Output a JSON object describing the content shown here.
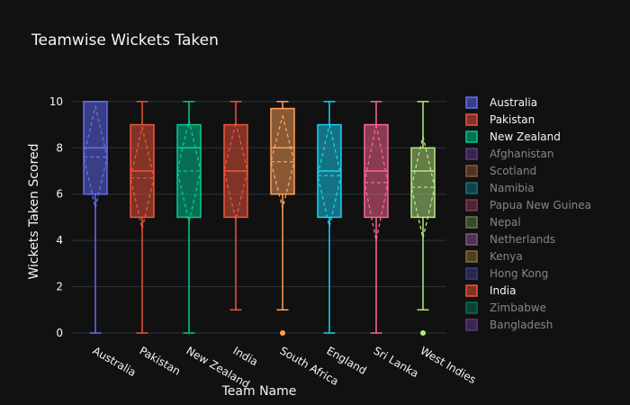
{
  "chart_data": {
    "type": "box",
    "title": "Teamwise Wickets Taken",
    "xlabel": "Team Name",
    "ylabel": "Wickets Taken Scored",
    "ylim": [
      0,
      10.5
    ],
    "yticks": [
      0,
      2,
      4,
      6,
      8,
      10
    ],
    "grid": true,
    "legend_position": "right",
    "box_annotations": "mean and standard deviation shown as dashed lines",
    "categories": [
      "Australia",
      "Pakistan",
      "New Zealand",
      "India",
      "South Africa",
      "England",
      "Sri Lanka",
      "West Indies"
    ],
    "series": [
      {
        "name": "Australia",
        "color": "#636efa",
        "min": 0,
        "q1": 6,
        "median": 8,
        "q3": 10,
        "max": 10,
        "mean": 7.6,
        "sd": 2.2,
        "outliers": []
      },
      {
        "name": "Pakistan",
        "color": "#ef553b",
        "min": 0,
        "q1": 5,
        "median": 7,
        "q3": 9,
        "max": 10,
        "mean": 6.7,
        "sd": 2.2,
        "outliers": []
      },
      {
        "name": "New Zealand",
        "color": "#00cc96",
        "min": 0,
        "q1": 5,
        "median": 8,
        "q3": 9,
        "max": 10,
        "mean": 7.0,
        "sd": 2.2,
        "outliers": []
      },
      {
        "name": "India",
        "color": "#ef553b",
        "min": 1,
        "q1": 5,
        "median": 7,
        "q3": 9,
        "max": 10,
        "mean": 7.0,
        "sd": 2.1,
        "outliers": []
      },
      {
        "name": "South Africa",
        "color": "#ffa15a",
        "min": 1,
        "q1": 6,
        "median": 8,
        "q3": 9.7,
        "max": 10,
        "mean": 7.4,
        "sd": 2.0,
        "outliers": [
          0
        ]
      },
      {
        "name": "England",
        "color": "#19d3f3",
        "min": 0,
        "q1": 5,
        "median": 7,
        "q3": 9,
        "max": 10,
        "mean": 6.8,
        "sd": 2.2,
        "outliers": []
      },
      {
        "name": "Sri Lanka",
        "color": "#ff6692",
        "min": 0,
        "q1": 5,
        "median": 7,
        "q3": 9,
        "max": 10,
        "mean": 6.5,
        "sd": 2.5,
        "outliers": []
      },
      {
        "name": "West Indies",
        "color": "#b6e880",
        "min": 1,
        "q1": 5,
        "median": 7,
        "q3": 8,
        "max": 10,
        "mean": 6.3,
        "sd": 2.2,
        "outliers": [
          0
        ]
      }
    ],
    "legend": [
      {
        "name": "Australia",
        "color": "#636efa",
        "active": true
      },
      {
        "name": "Pakistan",
        "color": "#ef553b",
        "active": true
      },
      {
        "name": "New Zealand",
        "color": "#00cc96",
        "active": true
      },
      {
        "name": "Afghanistan",
        "color": "#ab63fa",
        "active": false
      },
      {
        "name": "Scotland",
        "color": "#ffa15a",
        "active": false
      },
      {
        "name": "Namibia",
        "color": "#19d3f3",
        "active": false
      },
      {
        "name": "Papua New Guinea",
        "color": "#ff6692",
        "active": false
      },
      {
        "name": "Nepal",
        "color": "#b6e880",
        "active": false
      },
      {
        "name": "Netherlands",
        "color": "#ff97ff",
        "active": false
      },
      {
        "name": "Kenya",
        "color": "#fecb52",
        "active": false
      },
      {
        "name": "Hong Kong",
        "color": "#636efa",
        "active": false
      },
      {
        "name": "India",
        "color": "#ef553b",
        "active": true
      },
      {
        "name": "Zimbabwe",
        "color": "#00cc96",
        "active": false
      },
      {
        "name": "Bangladesh",
        "color": "#ab63fa",
        "active": false
      }
    ]
  }
}
